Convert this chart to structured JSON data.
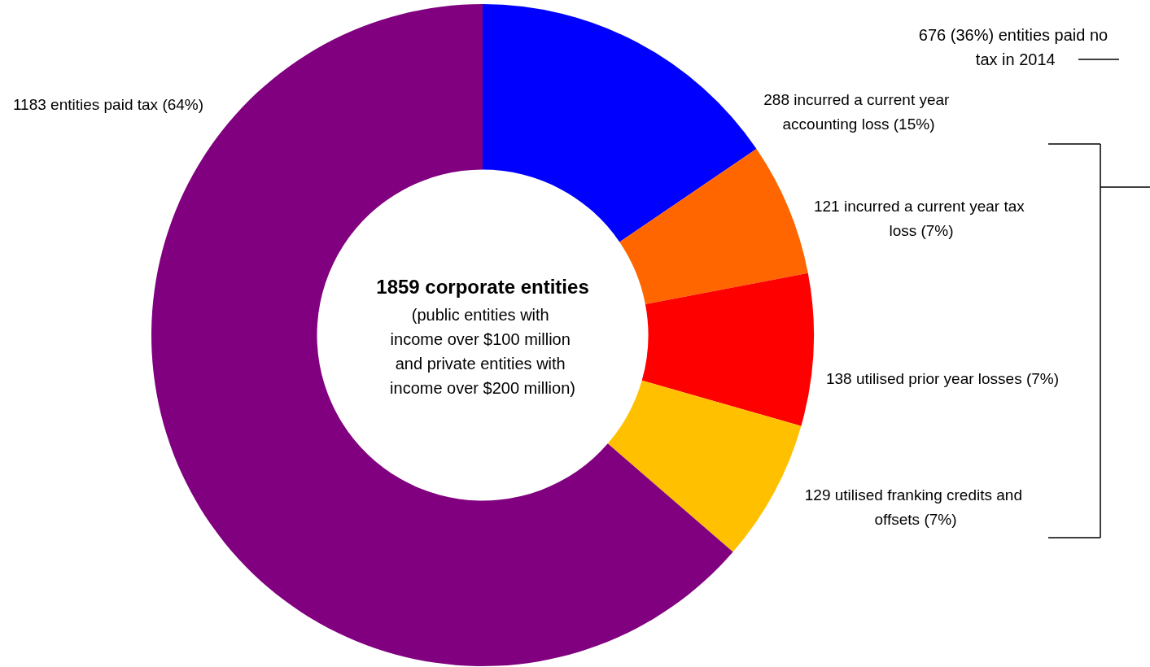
{
  "chart_data": {
    "type": "donut",
    "title": "1859 corporate entities",
    "subtitle": "(public entities with income over $100 million and private entities with income over $200 million)",
    "categories": [
      "288 incurred a current year accounting loss (15%)",
      "121 incurred a current year tax loss (7%)",
      "138 utilised prior year losses (7%)",
      "129 utilised franking credits and offsets (7%)",
      "1183 entities paid tax (64%)"
    ],
    "values": [
      288,
      121,
      138,
      129,
      1183
    ],
    "colors": [
      "#0000ff",
      "#ff6600",
      "#ff0000",
      "#ffc000",
      "#800080"
    ],
    "annotations": [
      "676 (36%) entities paid no tax in 2014"
    ],
    "legend": false
  }
}
